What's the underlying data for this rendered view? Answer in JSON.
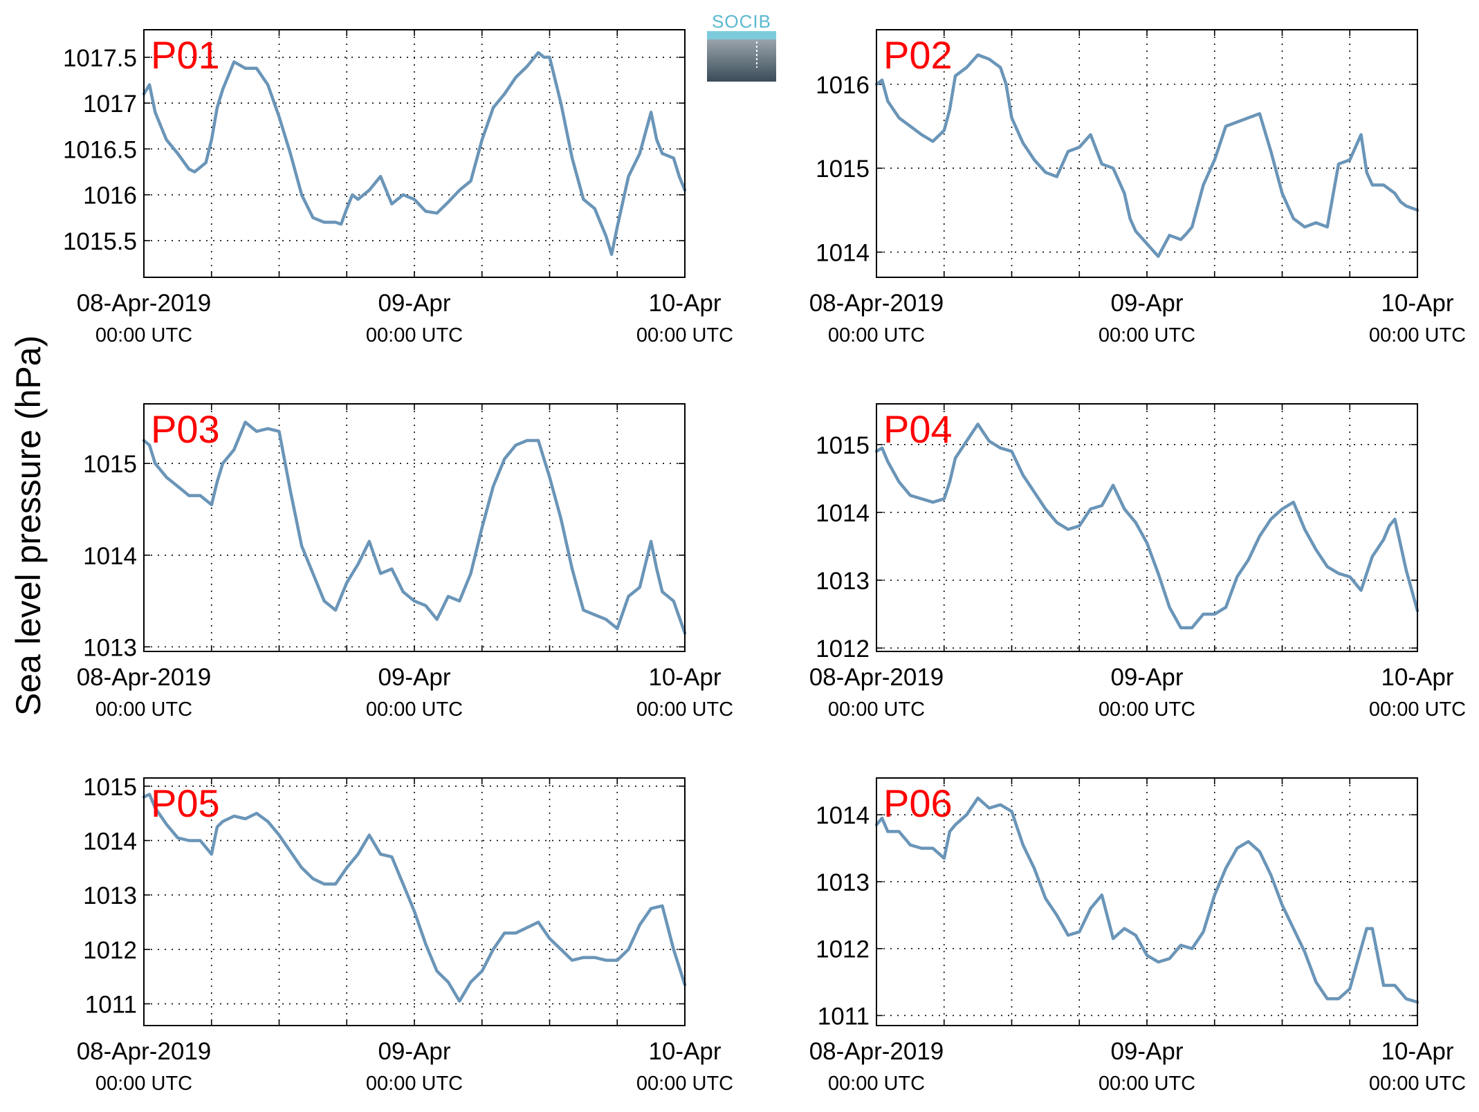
{
  "ylabel": "Sea level pressure (hPa)",
  "logo_text": "SOCIB",
  "x_tick_labels": [
    {
      "line1": "08-Apr-2019",
      "line2": "00:00 UTC"
    },
    {
      "line1": "09-Apr",
      "line2": "00:00 UTC"
    },
    {
      "line1": "10-Apr",
      "line2": "00:00 UTC"
    }
  ],
  "colors": {
    "line": "#6a95b8",
    "panel_label": "#ff0000",
    "grid": "#000000"
  },
  "chart_data": [
    {
      "type": "line",
      "label": "P01",
      "x_unit": "hours since 08-Apr-2019 00:00 UTC",
      "xlim": [
        0,
        48
      ],
      "ylim": [
        1015.1,
        1017.8
      ],
      "yticks": [
        1015.5,
        1016,
        1016.5,
        1017,
        1017.5
      ],
      "ytick_labels": [
        "1015.5",
        "1016",
        "1016.5",
        "1017",
        "1017.5"
      ],
      "x": [
        0,
        0.5,
        1,
        1.5,
        2,
        3,
        4,
        4.5,
        5,
        5.5,
        6,
        6.5,
        7,
        8,
        9,
        10,
        11,
        12,
        13,
        14,
        15,
        16,
        17,
        17.5,
        18,
        18.5,
        19,
        20,
        21,
        22,
        23,
        24,
        25,
        26,
        27,
        28,
        28.5,
        29,
        30,
        31,
        32,
        33,
        34,
        35,
        35.5,
        36,
        37,
        38,
        39,
        40,
        41,
        41.5,
        42,
        43,
        44,
        45,
        45.5,
        46,
        47,
        47.5,
        48
      ],
      "y": [
        1017.1,
        1017.2,
        1016.9,
        1016.75,
        1016.6,
        1016.45,
        1016.28,
        1016.25,
        1016.3,
        1016.35,
        1016.6,
        1016.95,
        1017.15,
        1017.45,
        1017.38,
        1017.38,
        1017.2,
        1016.85,
        1016.45,
        1016,
        1015.75,
        1015.7,
        1015.7,
        1015.68,
        1015.85,
        1016.0,
        1015.95,
        1016.05,
        1016.2,
        1015.9,
        1016.0,
        1015.95,
        1015.82,
        1015.8,
        1015.92,
        1016.05,
        1016.1,
        1016.15,
        1016.6,
        1016.95,
        1017.1,
        1017.28,
        1017.4,
        1017.55,
        1017.5,
        1017.5,
        1017.0,
        1016.4,
        1015.95,
        1015.85,
        1015.55,
        1015.35,
        1015.65,
        1016.2,
        1016.45,
        1016.9,
        1016.6,
        1016.45,
        1016.4,
        1016.2,
        1016.05
      ]
    },
    {
      "type": "line",
      "label": "P02",
      "x_unit": "hours since 08-Apr-2019 00:00 UTC",
      "xlim": [
        0,
        48
      ],
      "ylim": [
        1013.7,
        1016.65
      ],
      "yticks": [
        1014,
        1015,
        1016
      ],
      "ytick_labels": [
        "1014",
        "1015",
        "1016"
      ],
      "x": [
        0,
        0.5,
        1,
        2,
        3,
        4,
        5,
        6,
        6.5,
        7,
        8,
        9,
        10,
        11,
        11.5,
        12,
        13,
        14,
        15,
        16,
        17,
        18,
        19,
        20,
        21,
        22,
        22.5,
        23,
        24,
        25,
        26,
        27,
        27.5,
        28,
        29,
        30,
        31,
        32,
        33,
        34,
        35,
        36,
        37,
        38,
        39,
        40,
        41,
        42,
        43,
        43.5,
        44,
        45,
        46,
        46.5,
        47,
        48
      ],
      "y": [
        1016.0,
        1016.05,
        1015.8,
        1015.6,
        1015.5,
        1015.4,
        1015.32,
        1015.45,
        1015.7,
        1016.1,
        1016.2,
        1016.35,
        1016.3,
        1016.2,
        1016.0,
        1015.6,
        1015.3,
        1015.1,
        1014.95,
        1014.9,
        1015.2,
        1015.25,
        1015.4,
        1015.05,
        1015.0,
        1014.7,
        1014.4,
        1014.25,
        1014.1,
        1013.95,
        1014.2,
        1014.15,
        1014.22,
        1014.3,
        1014.8,
        1015.1,
        1015.5,
        1015.55,
        1015.6,
        1015.65,
        1015.2,
        1014.7,
        1014.4,
        1014.3,
        1014.35,
        1014.3,
        1015.05,
        1015.1,
        1015.4,
        1014.95,
        1014.8,
        1014.8,
        1014.7,
        1014.6,
        1014.55,
        1014.5
      ]
    },
    {
      "type": "line",
      "label": "P03",
      "x_unit": "hours since 08-Apr-2019 00:00 UTC",
      "xlim": [
        0,
        48
      ],
      "ylim": [
        1012.95,
        1015.65
      ],
      "yticks": [
        1013,
        1014,
        1015
      ],
      "ytick_labels": [
        "1013",
        "1014",
        "1015"
      ],
      "x": [
        0,
        0.5,
        1,
        2,
        3,
        4,
        5,
        6,
        6.5,
        7,
        8,
        9,
        10,
        11,
        12,
        13,
        14,
        15,
        16,
        17,
        18,
        19,
        20,
        21,
        22,
        23,
        24,
        25,
        26,
        27,
        28,
        29,
        30,
        31,
        32,
        33,
        34,
        35,
        36,
        37,
        38,
        39,
        40,
        41,
        42,
        43,
        44,
        45,
        45.5,
        46,
        47,
        48
      ],
      "y": [
        1015.25,
        1015.2,
        1015.0,
        1014.85,
        1014.75,
        1014.65,
        1014.65,
        1014.55,
        1014.8,
        1015.0,
        1015.15,
        1015.45,
        1015.35,
        1015.38,
        1015.35,
        1014.7,
        1014.1,
        1013.8,
        1013.5,
        1013.4,
        1013.7,
        1013.9,
        1014.15,
        1013.8,
        1013.85,
        1013.6,
        1013.5,
        1013.45,
        1013.3,
        1013.55,
        1013.5,
        1013.8,
        1014.3,
        1014.75,
        1015.05,
        1015.2,
        1015.25,
        1015.25,
        1014.85,
        1014.4,
        1013.85,
        1013.4,
        1013.35,
        1013.3,
        1013.2,
        1013.55,
        1013.65,
        1014.15,
        1013.85,
        1013.6,
        1013.5,
        1013.15
      ]
    },
    {
      "type": "line",
      "label": "P04",
      "x_unit": "hours since 08-Apr-2019 00:00 UTC",
      "xlim": [
        0,
        48
      ],
      "ylim": [
        1011.95,
        1015.6
      ],
      "yticks": [
        1012,
        1013,
        1014,
        1015
      ],
      "ytick_labels": [
        "1012",
        "1013",
        "1014",
        "1015"
      ],
      "x": [
        0,
        0.5,
        1,
        2,
        3,
        4,
        5,
        6,
        6.5,
        7,
        8,
        9,
        10,
        11,
        12,
        13,
        14,
        15,
        16,
        17,
        18,
        19,
        20,
        21,
        22,
        23,
        24,
        25,
        26,
        27,
        28,
        29,
        30,
        31,
        32,
        33,
        34,
        35,
        36,
        37,
        38,
        39,
        40,
        41,
        42,
        43,
        44,
        45,
        45.5,
        46,
        47,
        48
      ],
      "y": [
        1014.9,
        1014.95,
        1014.75,
        1014.45,
        1014.25,
        1014.2,
        1014.15,
        1014.2,
        1014.45,
        1014.8,
        1015.05,
        1015.3,
        1015.05,
        1014.95,
        1014.9,
        1014.55,
        1014.3,
        1014.05,
        1013.85,
        1013.75,
        1013.8,
        1014.05,
        1014.1,
        1014.4,
        1014.05,
        1013.85,
        1013.55,
        1013.1,
        1012.6,
        1012.3,
        1012.3,
        1012.5,
        1012.5,
        1012.6,
        1013.05,
        1013.3,
        1013.65,
        1013.9,
        1014.05,
        1014.15,
        1013.75,
        1013.45,
        1013.2,
        1013.1,
        1013.05,
        1012.85,
        1013.35,
        1013.6,
        1013.8,
        1013.9,
        1013.15,
        1012.55
      ]
    },
    {
      "type": "line",
      "label": "P05",
      "x_unit": "hours since 08-Apr-2019 00:00 UTC",
      "xlim": [
        0,
        48
      ],
      "ylim": [
        1010.6,
        1015.15
      ],
      "yticks": [
        1011,
        1012,
        1013,
        1014,
        1015
      ],
      "ytick_labels": [
        "1011",
        "1012",
        "1013",
        "1014",
        "1015"
      ],
      "x": [
        0,
        0.5,
        1,
        2,
        3,
        4,
        5,
        6,
        6.5,
        7,
        8,
        9,
        10,
        11,
        12,
        13,
        14,
        15,
        16,
        17,
        18,
        19,
        20,
        21,
        22,
        23,
        24,
        25,
        26,
        27,
        28,
        29,
        30,
        31,
        32,
        33,
        34,
        35,
        36,
        37,
        38,
        39,
        40,
        41,
        42,
        43,
        44,
        45,
        46,
        47,
        48
      ],
      "y": [
        1014.8,
        1014.85,
        1014.6,
        1014.3,
        1014.05,
        1014.0,
        1014.0,
        1013.75,
        1014.25,
        1014.35,
        1014.45,
        1014.4,
        1014.5,
        1014.35,
        1014.1,
        1013.8,
        1013.5,
        1013.3,
        1013.2,
        1013.2,
        1013.5,
        1013.75,
        1014.1,
        1013.75,
        1013.7,
        1013.2,
        1012.7,
        1012.1,
        1011.6,
        1011.4,
        1011.05,
        1011.4,
        1011.6,
        1012.0,
        1012.3,
        1012.3,
        1012.4,
        1012.5,
        1012.2,
        1012.0,
        1011.8,
        1011.85,
        1011.85,
        1011.8,
        1011.8,
        1012.0,
        1012.45,
        1012.75,
        1012.8,
        1012.0,
        1011.35
      ]
    },
    {
      "type": "line",
      "label": "P06",
      "x_unit": "hours since 08-Apr-2019 00:00 UTC",
      "xlim": [
        0,
        48
      ],
      "ylim": [
        1010.85,
        1014.55
      ],
      "yticks": [
        1011,
        1012,
        1013,
        1014
      ],
      "ytick_labels": [
        "1011",
        "1012",
        "1013",
        "1014"
      ],
      "x": [
        0,
        0.5,
        1,
        2,
        3,
        4,
        5,
        6,
        6.5,
        7,
        8,
        9,
        10,
        11,
        12,
        13,
        14,
        15,
        16,
        17,
        18,
        19,
        20,
        21,
        22,
        23,
        24,
        25,
        26,
        27,
        28,
        29,
        30,
        31,
        32,
        33,
        34,
        35,
        36,
        37,
        38,
        39,
        40,
        41,
        42,
        43,
        43.5,
        44,
        45,
        46,
        47,
        48
      ],
      "y": [
        1013.85,
        1013.95,
        1013.75,
        1013.75,
        1013.55,
        1013.5,
        1013.5,
        1013.35,
        1013.75,
        1013.85,
        1014.0,
        1014.25,
        1014.1,
        1014.15,
        1014.05,
        1013.55,
        1013.2,
        1012.75,
        1012.5,
        1012.2,
        1012.25,
        1012.6,
        1012.8,
        1012.15,
        1012.3,
        1012.2,
        1011.9,
        1011.8,
        1011.85,
        1012.05,
        1012.0,
        1012.25,
        1012.8,
        1013.2,
        1013.5,
        1013.6,
        1013.45,
        1013.1,
        1012.65,
        1012.3,
        1011.95,
        1011.5,
        1011.25,
        1011.25,
        1011.4,
        1012.0,
        1012.3,
        1012.3,
        1011.45,
        1011.45,
        1011.25,
        1011.2
      ]
    }
  ]
}
